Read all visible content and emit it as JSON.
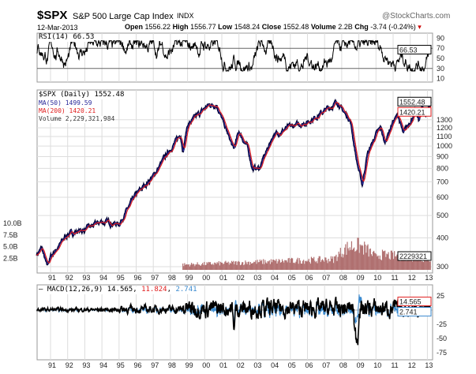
{
  "header": {
    "symbol": "$SPX",
    "name": "S&P 500 Large Cap Index",
    "exchange": "INDX",
    "brand": "@StockCharts.com",
    "date": "12-Mar-2013",
    "open_label": "Open",
    "open": "1556.22",
    "high_label": "High",
    "high": "1556.77",
    "low_label": "Low",
    "low": "1548.24",
    "close_label": "Close",
    "close": "1552.48",
    "volume_label": "Volume",
    "volume": "2.2B",
    "chg_label": "Chg",
    "chg": "-3.74 (-0.24%)"
  },
  "chart_data": [
    {
      "type": "line",
      "title": "RSI(14) 66.53",
      "value": 66.53,
      "value_tag": "66.53",
      "yticks": [
        "90",
        "70",
        "50",
        "30",
        "10"
      ],
      "ylim": [
        0,
        100
      ],
      "reference_lines": [
        70,
        30
      ]
    },
    {
      "type": "line",
      "title": "$SPX (Daily) 1552.48",
      "scale": "log",
      "ylim": [
        280,
        1600
      ],
      "legend": [
        "MA(50) 1499.59",
        "MA(200) 1420.21",
        "Volume 2,229,321,984"
      ],
      "yticks": [
        "1300",
        "1200",
        "1100",
        "1000",
        "900",
        "800",
        "700",
        "600",
        "500",
        "400",
        "300"
      ],
      "vol_ticks": [
        "10.0B",
        "7.5B",
        "5.0B",
        "2.5B"
      ],
      "tags": {
        "close": "1552.48",
        "ma200": "1420.21",
        "volume": "2229321"
      },
      "x": [
        1990.2,
        1990.5,
        1990.8,
        1991.0,
        1992.0,
        1993.0,
        1994.0,
        1995.0,
        1996.0,
        1997.0,
        1998.0,
        1998.6,
        1998.75,
        1999.0,
        2000.2,
        2000.7,
        2001.0,
        2001.7,
        2002.0,
        2002.5,
        2002.8,
        2003.2,
        2004.0,
        2005.0,
        2006.0,
        2007.0,
        2007.8,
        2008.0,
        2008.5,
        2008.9,
        2009.2,
        2009.5,
        2010.0,
        2010.3,
        2010.5,
        2011.0,
        2011.3,
        2011.6,
        2012.0,
        2012.3,
        2012.5,
        2012.7,
        2012.9,
        2013.2
      ],
      "close": [
        340,
        360,
        300,
        330,
        415,
        435,
        470,
        460,
        615,
        740,
        970,
        1120,
        960,
        1230,
        1500,
        1520,
        1320,
        965,
        1150,
        990,
        800,
        800,
        1110,
        1210,
        1270,
        1420,
        1560,
        1440,
        1300,
        850,
        680,
        920,
        1120,
        1200,
        1030,
        1280,
        1360,
        1120,
        1280,
        1410,
        1300,
        1460,
        1360,
        1552
      ]
    },
    {
      "type": "line",
      "title": "MACD(12,26,9)",
      "values": [
        "14.565",
        "11.824",
        "2.741"
      ],
      "yticks": [
        "25",
        "-25",
        "-50",
        "-75"
      ],
      "tags": [
        "14.565",
        "2.741"
      ],
      "ylim": [
        -80,
        35
      ]
    }
  ],
  "xaxis": [
    "91",
    "92",
    "93",
    "94",
    "95",
    "96",
    "97",
    "98",
    "99",
    "00",
    "01",
    "02",
    "03",
    "04",
    "05",
    "06",
    "07",
    "08",
    "09",
    "10",
    "11",
    "12",
    "13"
  ],
  "colors": {
    "price": "#000033",
    "ma50": "#2a2a9a",
    "ma200": "#e02020",
    "volume": "#b07070",
    "signal": "#e02020",
    "hist": "#3a8acf",
    "grid": "#dddddd"
  }
}
